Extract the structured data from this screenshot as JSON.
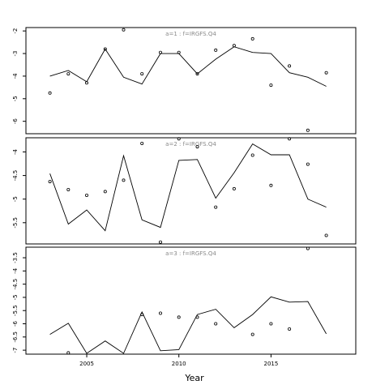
{
  "chart_data": {
    "type": "scatter",
    "xlabel": "Year",
    "x_ticks": [
      2005,
      2010,
      2015
    ],
    "x_range": [
      2001.7,
      2019.6
    ],
    "years": [
      2003,
      2004,
      2005,
      2006,
      2007,
      2008,
      2009,
      2010,
      2011,
      2012,
      2013,
      2014,
      2015,
      2016,
      2017,
      2018
    ],
    "panels": [
      {
        "title": "a=1  :  f=IRGFS.Q4",
        "ylim": [
          -6.55,
          -1.85
        ],
        "y_ticks": [
          -2,
          -3,
          -4,
          -5,
          -6
        ],
        "observed": [
          -4.75,
          -3.9,
          -4.3,
          -2.8,
          -1.95,
          -3.9,
          -2.95,
          -2.95,
          -3.9,
          -2.85,
          -2.65,
          -2.35,
          -4.4,
          -3.55,
          -6.4,
          -3.85
        ],
        "fitted": [
          -4.0,
          -3.75,
          -4.25,
          -2.8,
          -4.05,
          -4.35,
          -3.0,
          -3.0,
          -3.9,
          -3.25,
          -2.7,
          -2.95,
          -3.0,
          -3.85,
          -4.05,
          -4.45
        ]
      },
      {
        "title": "a=2  :  f=IRGFS.Q4",
        "ylim": [
          -5.95,
          -3.7
        ],
        "y_ticks": [
          -4.0,
          -4.5,
          -5.0,
          -5.5
        ],
        "observed": [
          -4.63,
          -4.8,
          -4.92,
          -4.84,
          -4.6,
          -3.82,
          -5.91,
          -3.72,
          -3.89,
          -5.17,
          -4.78,
          -4.07,
          -4.71,
          -3.72,
          -4.26,
          -5.77
        ],
        "fitted": [
          -4.46,
          -5.53,
          -5.23,
          -5.67,
          -4.08,
          -5.44,
          -5.6,
          -4.18,
          -4.16,
          -4.98,
          -4.44,
          -3.83,
          -4.06,
          -4.06,
          -5.0,
          -5.17
        ]
      },
      {
        "title": "a=3  :  f=IRGFS.Q4",
        "ylim": [
          -7.15,
          -3.1
        ],
        "y_ticks": [
          -3.5,
          -4.0,
          -4.5,
          -5.0,
          -5.5,
          -6.0,
          -6.5,
          -7.0
        ],
        "observed": [
          null,
          -7.1,
          null,
          null,
          null,
          -5.65,
          -5.6,
          -5.75,
          -5.75,
          -6.0,
          null,
          -6.4,
          -6.0,
          -6.2,
          -3.15,
          null
        ],
        "fitted": [
          -6.4,
          -5.98,
          -7.12,
          -6.65,
          -7.12,
          -5.55,
          -7.02,
          -6.98,
          -5.65,
          -5.45,
          -6.15,
          -5.65,
          -4.98,
          -5.18,
          -5.16,
          -6.38
        ]
      }
    ]
  }
}
